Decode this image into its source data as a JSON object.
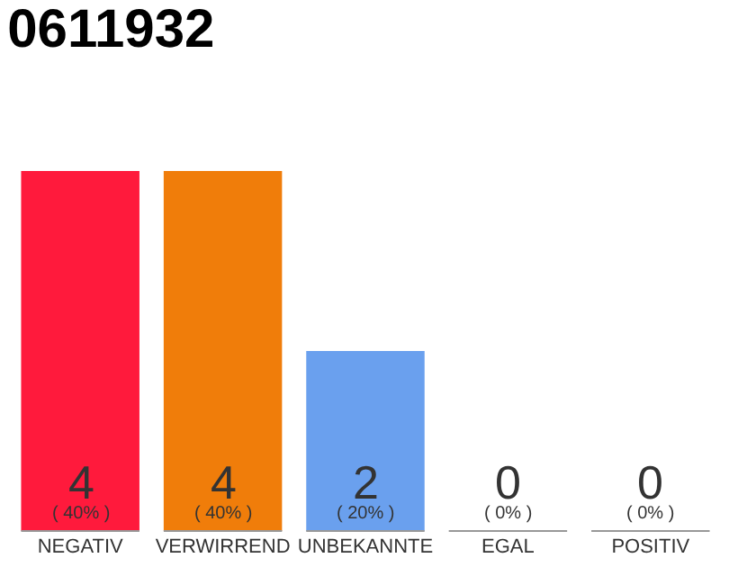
{
  "chart_data": {
    "type": "bar",
    "title": "0611932",
    "categories": [
      "NEGATIV",
      "VERWIRREND",
      "UNBEKANNTE",
      "EGAL",
      "POSITIV"
    ],
    "values": [
      40,
      40,
      20,
      0,
      0
    ],
    "colors": [
      "#ff1a3c",
      "#f07d0a",
      "#6aa0ee",
      "#cccccc",
      "#cccccc"
    ],
    "value_labels": [
      "4\n( 40% )",
      "4\n( 40% )",
      "2\n( 20% )",
      "0\n( 0% )",
      "0\n( 0% )"
    ]
  }
}
